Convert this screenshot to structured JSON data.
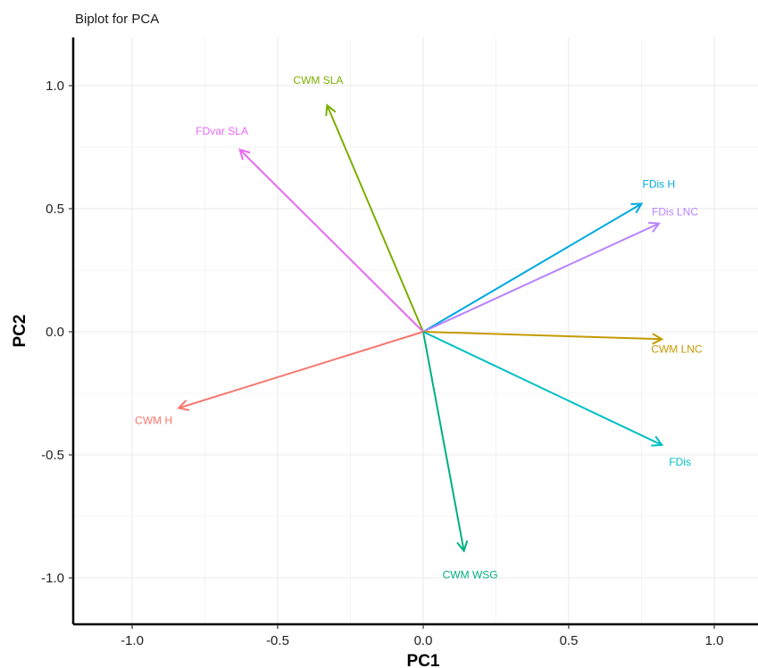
{
  "chart_data": {
    "type": "biplot",
    "title": "Biplot for PCA",
    "xlabel": "PC1",
    "ylabel": "PC2",
    "xlim": [
      -1.2,
      1.15
    ],
    "ylim": [
      -1.2,
      1.2
    ],
    "xticks": [
      -1.0,
      -0.5,
      0.0,
      0.5,
      1.0
    ],
    "xtick_labels": [
      "-1.0",
      "-0.5",
      "0.0",
      "0.5",
      "1.0"
    ],
    "yticks": [
      1.0,
      0.5,
      0.0,
      -0.5,
      -1.0
    ],
    "ytick_labels": [
      "1.0",
      "0.5",
      "0.0",
      "-0.5",
      "-1.0"
    ],
    "grid": true,
    "vectors": [
      {
        "name": "CWM SLA",
        "x": -0.33,
        "y": 0.92,
        "color": "#7CAE00"
      },
      {
        "name": "FDvar SLA",
        "x": -0.63,
        "y": 0.74,
        "color": "#E76BF3"
      },
      {
        "name": "FDis H",
        "x": 0.75,
        "y": 0.52,
        "color": "#00A9E0"
      },
      {
        "name": "FDis LNC",
        "x": 0.81,
        "y": 0.44,
        "color": "#B983FF"
      },
      {
        "name": "CWM LNC",
        "x": 0.82,
        "y": -0.03,
        "color": "#C49A00"
      },
      {
        "name": "FDis",
        "x": 0.82,
        "y": -0.46,
        "color": "#00BFC4"
      },
      {
        "name": "CWM WSG",
        "x": 0.14,
        "y": -0.89,
        "color": "#00B081"
      },
      {
        "name": "CWM H",
        "x": -0.84,
        "y": -0.31,
        "color": "#F8766D"
      }
    ]
  }
}
